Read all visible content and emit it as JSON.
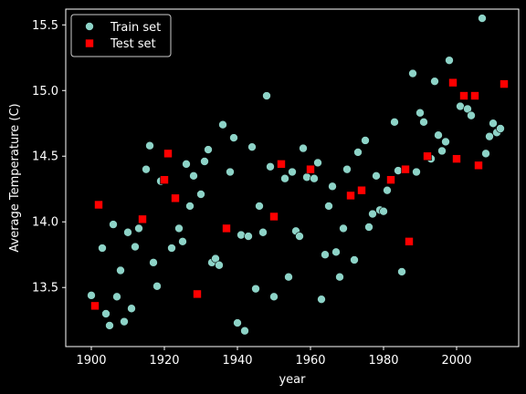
{
  "chart_data": {
    "type": "scatter",
    "title": "",
    "xlabel": "year",
    "ylabel": "Average Temperature (C)",
    "xlim": [
      1893,
      2017
    ],
    "ylim": [
      13.05,
      15.62
    ],
    "xticks": [
      1900,
      1920,
      1940,
      1960,
      1980,
      2000
    ],
    "yticks": [
      13.5,
      14.0,
      14.5,
      15.0,
      15.5
    ],
    "ytick_labels": [
      "13.5",
      "14.0",
      "14.5",
      "15.0",
      "15.5"
    ],
    "grid": false,
    "legend_position": "top-left",
    "series": [
      {
        "name": "Train set",
        "color": "#8dd3c7",
        "marker": "circle",
        "points": [
          [
            1900,
            13.44
          ],
          [
            1903,
            13.8
          ],
          [
            1904,
            13.3
          ],
          [
            1905,
            13.21
          ],
          [
            1906,
            13.98
          ],
          [
            1907,
            13.43
          ],
          [
            1908,
            13.63
          ],
          [
            1909,
            13.24
          ],
          [
            1910,
            13.92
          ],
          [
            1911,
            13.34
          ],
          [
            1912,
            13.81
          ],
          [
            1913,
            13.95
          ],
          [
            1915,
            14.4
          ],
          [
            1916,
            14.58
          ],
          [
            1917,
            13.69
          ],
          [
            1918,
            13.51
          ],
          [
            1919,
            14.31
          ],
          [
            1922,
            13.8
          ],
          [
            1924,
            13.95
          ],
          [
            1925,
            13.85
          ],
          [
            1926,
            14.44
          ],
          [
            1927,
            14.12
          ],
          [
            1928,
            14.35
          ],
          [
            1930,
            14.21
          ],
          [
            1931,
            14.46
          ],
          [
            1932,
            14.55
          ],
          [
            1933,
            13.69
          ],
          [
            1934,
            13.72
          ],
          [
            1935,
            13.67
          ],
          [
            1936,
            14.74
          ],
          [
            1938,
            14.38
          ],
          [
            1939,
            14.64
          ],
          [
            1940,
            13.23
          ],
          [
            1941,
            13.9
          ],
          [
            1942,
            13.17
          ],
          [
            1943,
            13.89
          ],
          [
            1944,
            14.57
          ],
          [
            1945,
            13.49
          ],
          [
            1946,
            14.12
          ],
          [
            1947,
            13.92
          ],
          [
            1948,
            14.96
          ],
          [
            1949,
            14.42
          ],
          [
            1950,
            13.43
          ],
          [
            1953,
            14.33
          ],
          [
            1954,
            13.58
          ],
          [
            1955,
            14.38
          ],
          [
            1956,
            13.93
          ],
          [
            1957,
            13.89
          ],
          [
            1958,
            14.56
          ],
          [
            1959,
            14.34
          ],
          [
            1961,
            14.33
          ],
          [
            1962,
            14.45
          ],
          [
            1963,
            13.41
          ],
          [
            1964,
            13.75
          ],
          [
            1965,
            14.12
          ],
          [
            1966,
            14.27
          ],
          [
            1967,
            13.77
          ],
          [
            1968,
            13.58
          ],
          [
            1969,
            13.95
          ],
          [
            1970,
            14.4
          ],
          [
            1972,
            13.71
          ],
          [
            1973,
            14.53
          ],
          [
            1975,
            14.62
          ],
          [
            1976,
            13.96
          ],
          [
            1977,
            14.06
          ],
          [
            1978,
            14.35
          ],
          [
            1979,
            14.09
          ],
          [
            1980,
            14.08
          ],
          [
            1981,
            14.24
          ],
          [
            1983,
            14.76
          ],
          [
            1984,
            14.39
          ],
          [
            1985,
            13.62
          ],
          [
            1988,
            15.13
          ],
          [
            1989,
            14.38
          ],
          [
            1990,
            14.83
          ],
          [
            1991,
            14.76
          ],
          [
            1993,
            14.48
          ],
          [
            1994,
            15.07
          ],
          [
            1995,
            14.66
          ],
          [
            1996,
            14.54
          ],
          [
            1997,
            14.61
          ],
          [
            1998,
            15.23
          ],
          [
            2001,
            14.88
          ],
          [
            2003,
            14.86
          ],
          [
            2004,
            14.81
          ],
          [
            2007,
            15.55
          ],
          [
            2008,
            14.52
          ],
          [
            2009,
            14.65
          ],
          [
            2010,
            14.75
          ],
          [
            2011,
            14.68
          ],
          [
            2012,
            14.71
          ]
        ]
      },
      {
        "name": "Test set",
        "color": "#ff0000",
        "marker": "square",
        "points": [
          [
            1901,
            13.36
          ],
          [
            1902,
            14.13
          ],
          [
            1914,
            14.02
          ],
          [
            1920,
            14.32
          ],
          [
            1921,
            14.52
          ],
          [
            1923,
            14.18
          ],
          [
            1929,
            13.45
          ],
          [
            1937,
            13.95
          ],
          [
            1950,
            14.04
          ],
          [
            1952,
            14.44
          ],
          [
            1960,
            14.4
          ],
          [
            1971,
            14.2
          ],
          [
            1974,
            14.24
          ],
          [
            1982,
            14.32
          ],
          [
            1986,
            14.4
          ],
          [
            1987,
            13.85
          ],
          [
            1992,
            14.5
          ],
          [
            1999,
            15.06
          ],
          [
            2000,
            14.48
          ],
          [
            2002,
            14.96
          ],
          [
            2005,
            14.96
          ],
          [
            2006,
            14.43
          ],
          [
            2013,
            15.05
          ]
        ]
      }
    ]
  }
}
